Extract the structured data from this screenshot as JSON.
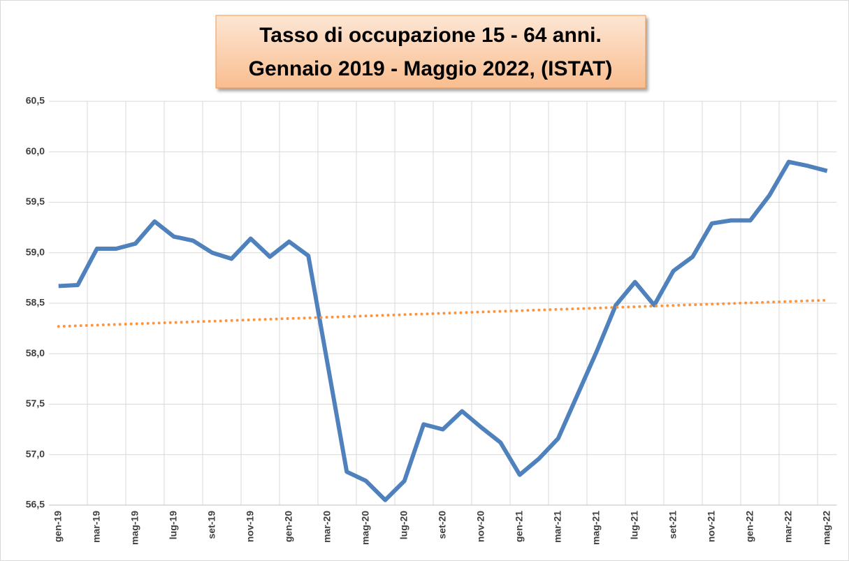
{
  "chart_data": {
    "type": "line",
    "title": [
      "Tasso di occupazione 15 - 64 anni.",
      "Gennaio 2019 - Maggio 2022, (ISTAT)"
    ],
    "categories": [
      "gen-19",
      null,
      "mar-19",
      null,
      "mag-19",
      null,
      "lug-19",
      null,
      "set-19",
      null,
      "nov-19",
      null,
      "gen-20",
      null,
      "mar-20",
      null,
      "mag-20",
      null,
      "lug-20",
      null,
      "set-20",
      null,
      "nov-20",
      null,
      "gen-21",
      null,
      "mar-21",
      null,
      "mag-21",
      null,
      "lug-21",
      null,
      "set-21",
      null,
      "nov-21",
      null,
      "gen-22",
      null,
      "mar-22",
      null,
      "mag-22"
    ],
    "series": [
      {
        "color": "#4f81bd",
        "values": [
          58.67,
          58.68,
          59.04,
          59.04,
          59.09,
          59.31,
          59.16,
          59.12,
          59.0,
          58.94,
          59.14,
          58.96,
          59.11,
          58.97,
          57.9,
          56.83,
          56.74,
          56.55,
          56.74,
          57.3,
          57.25,
          57.43,
          57.27,
          57.12,
          56.8,
          56.96,
          57.16,
          57.59,
          58.02,
          58.48,
          58.71,
          58.48,
          58.82,
          58.96,
          59.29,
          59.32,
          59.32,
          59.57,
          59.9,
          59.86,
          59.81
        ]
      }
    ],
    "trendline": {
      "color": "#f79646",
      "values": [
        58.27,
        58.53
      ]
    },
    "ylim": [
      56.5,
      60.5
    ],
    "yticks": [
      {
        "value": 56.5,
        "label": "56,5"
      },
      {
        "value": 57,
        "label": "57,0"
      },
      {
        "value": 57.5,
        "label": "57,5"
      },
      {
        "value": 58,
        "label": "58,0"
      },
      {
        "value": 58.5,
        "label": "58,5"
      },
      {
        "value": 59,
        "label": "59,0"
      },
      {
        "value": 59.5,
        "label": "59,5"
      },
      {
        "value": 60,
        "label": "60,0"
      },
      {
        "value": 60.5,
        "label": "60,5"
      }
    ],
    "grid": true
  }
}
